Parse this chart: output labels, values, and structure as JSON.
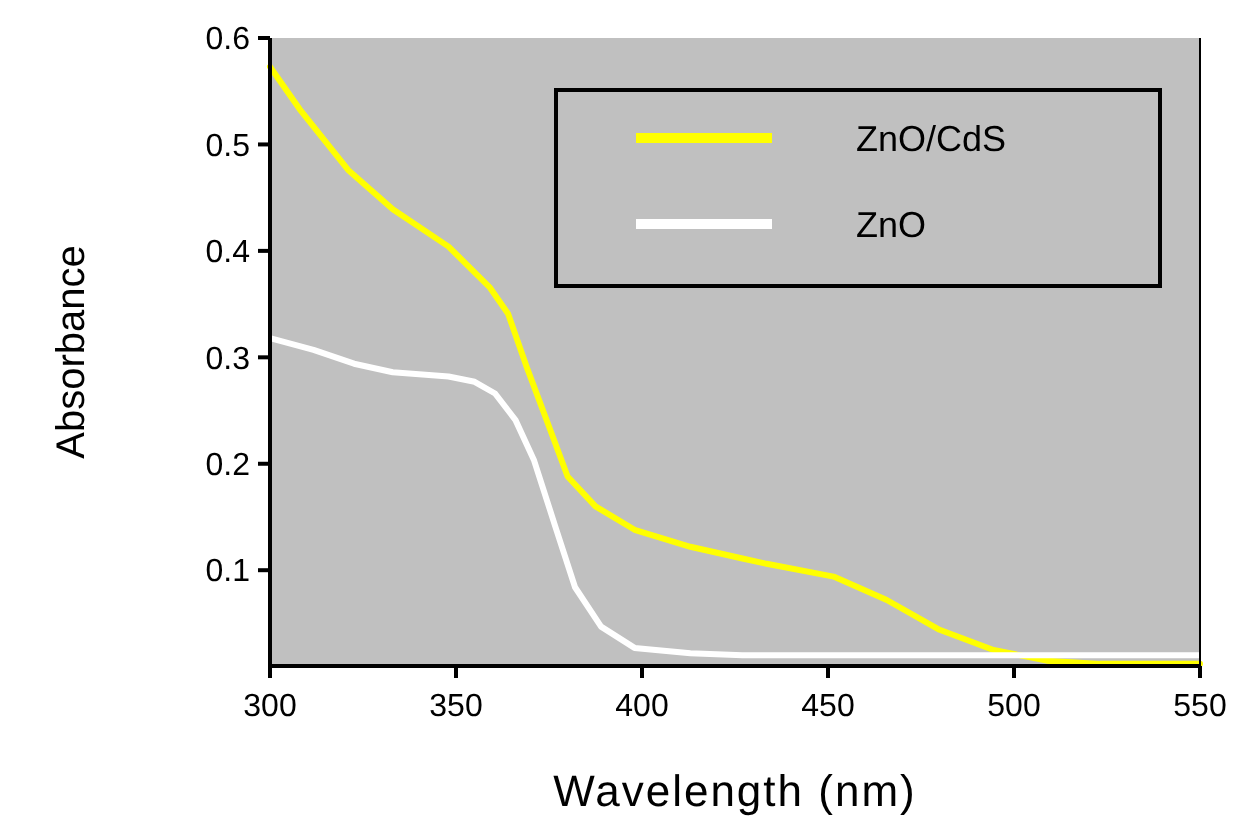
{
  "chart_data": {
    "type": "line",
    "xlabel": "Wavelength (nm)",
    "ylabel": "Absorbance",
    "xlim": [
      300,
      550
    ],
    "xticks": [
      300,
      350,
      400,
      450,
      500,
      550
    ],
    "ylim": [
      0.01,
      0.6
    ],
    "yticks": [
      {
        "value": 0.1,
        "label": "0.1"
      },
      {
        "value": 0.2,
        "label": "0.2"
      },
      {
        "value": 0.3,
        "label": "0.3"
      },
      {
        "value": 0.4,
        "label": "0.4"
      },
      {
        "value": 0.5,
        "label": "0.5"
      },
      {
        "value": 0.6,
        "label": "0.6"
      }
    ],
    "grid": false,
    "legend": "top right",
    "line_style": "solid",
    "marker": "none",
    "series": [
      {
        "name": "ZnO/CdS",
        "color": "#ffff00",
        "x": [
          300,
          308,
          321,
          333,
          348,
          359,
          364,
          369,
          375,
          380,
          387.5,
          398,
          413,
          427,
          433.5,
          451.5,
          465.8,
          480,
          494.5,
          508.8,
          523,
          550
        ],
        "values": [
          0.573,
          0.533,
          0.476,
          0.439,
          0.404,
          0.366,
          0.341,
          0.291,
          0.235,
          0.188,
          0.16,
          0.138,
          0.122,
          0.111,
          0.106,
          0.094,
          0.072,
          0.044,
          0.025,
          0.015,
          0.012,
          0.012
        ]
      },
      {
        "name": "ZnO",
        "color": "#ffffff",
        "x": [
          300,
          311.7,
          322.6,
          333,
          348,
          355,
          360.5,
          366,
          371,
          376.7,
          382,
          389,
          398,
          413,
          427,
          480,
          550
        ],
        "values": [
          0.318,
          0.307,
          0.294,
          0.286,
          0.282,
          0.277,
          0.266,
          0.241,
          0.203,
          0.141,
          0.084,
          0.047,
          0.027,
          0.022,
          0.02,
          0.02,
          0.02
        ]
      }
    ]
  }
}
